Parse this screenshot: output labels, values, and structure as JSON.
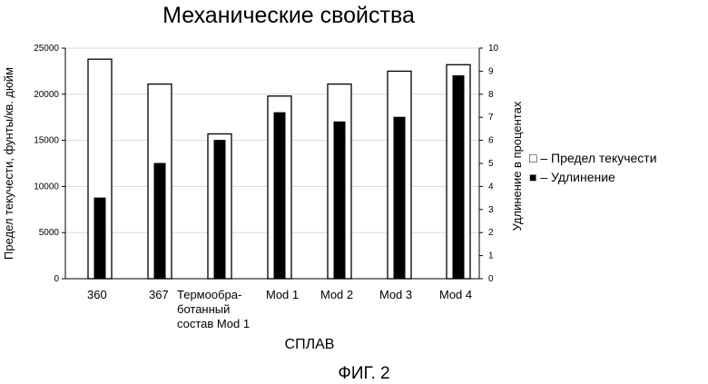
{
  "title": "Механические свойства",
  "figure_caption": "ФИГ. 2",
  "colors": {
    "bar_fill_open": "#ffffff",
    "bar_fill_filled": "#000000",
    "outline": "#000000"
  },
  "chart_data": {
    "type": "bar",
    "title": "Механические свойства",
    "xlabel": "СПЛАВ",
    "ylabel_left": "Предел текучести, фунты/кв. дюйм",
    "ylabel_right": "Удлинение в процентах",
    "categories": [
      [
        "360"
      ],
      [
        "367"
      ],
      [
        "Термообра-",
        "ботанный",
        "состав Mod 1"
      ],
      [
        "Mod 1"
      ],
      [
        "Mod 2"
      ],
      [
        "Mod 3"
      ],
      [
        "Mod 4"
      ]
    ],
    "ylim_left": [
      0,
      25000
    ],
    "left_ticks": [
      "0",
      "5000",
      "10000",
      "15000",
      "20000",
      "25000"
    ],
    "ylim_right": [
      0,
      10
    ],
    "right_ticks": [
      "0",
      "1",
      "2",
      "3",
      "4",
      "5",
      "6",
      "7",
      "8",
      "9",
      "10"
    ],
    "legend_position": "right",
    "series": [
      {
        "name": "□ – Предел текучести",
        "axis": "left",
        "style": "open",
        "values": [
          23800,
          21100,
          15700,
          19800,
          21100,
          22500,
          23200
        ]
      },
      {
        "name": "■ – Удлинение",
        "axis": "right",
        "style": "filled",
        "values": [
          3.5,
          5.0,
          6.0,
          7.2,
          6.8,
          7.0,
          8.8
        ]
      }
    ]
  }
}
